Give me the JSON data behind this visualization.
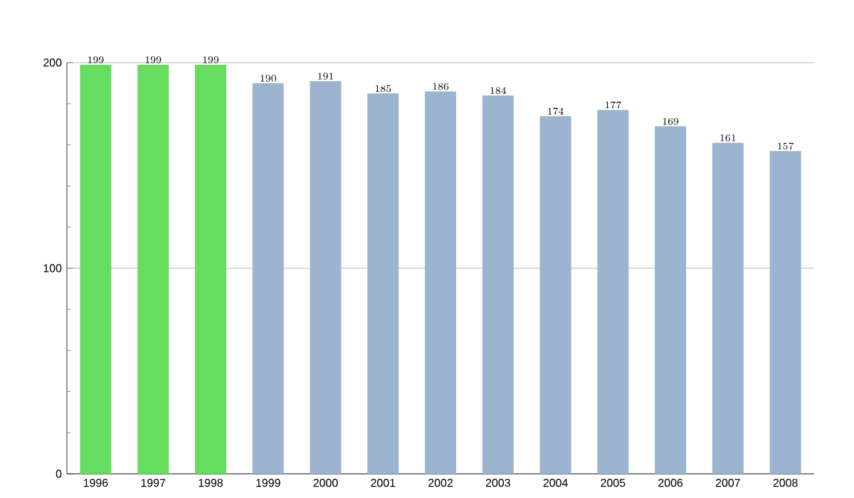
{
  "chart_data": {
    "type": "bar",
    "categories": [
      "1996",
      "1997",
      "1998",
      "1999",
      "2000",
      "2001",
      "2002",
      "2003",
      "2004",
      "2005",
      "2006",
      "2007",
      "2008"
    ],
    "values": [
      199,
      199,
      199,
      190,
      191,
      185,
      186,
      184,
      174,
      177,
      169,
      161,
      157
    ],
    "colors": [
      "#66dd5e",
      "#66dd5e",
      "#66dd5e",
      "#9cb4cf",
      "#9cb4cf",
      "#9cb4cf",
      "#9cb4cf",
      "#9cb4cf",
      "#9cb4cf",
      "#9cb4cf",
      "#9cb4cf",
      "#9cb4cf",
      "#9cb4cf"
    ],
    "ylim": [
      0,
      200
    ],
    "yticks": [
      0,
      100,
      200
    ],
    "grid": "y",
    "data_labels": true
  }
}
